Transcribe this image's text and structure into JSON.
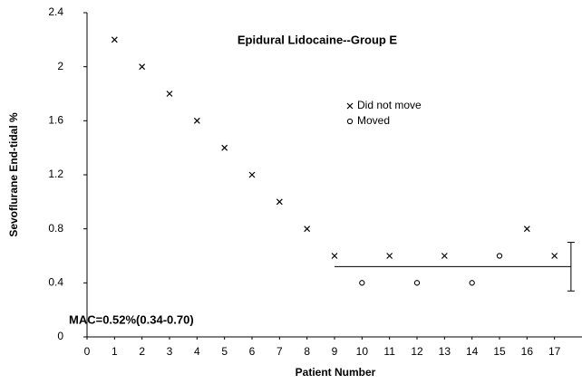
{
  "chart_data": {
    "type": "scatter",
    "title": "Epidural Lidocaine--Group E",
    "x_label": "Patient Number",
    "y_label": "Sevoflurane End-tidal %",
    "xlim": [
      0,
      18
    ],
    "ylim": [
      0,
      2.4
    ],
    "xticks": [
      0,
      1,
      2,
      3,
      4,
      5,
      6,
      7,
      8,
      9,
      10,
      11,
      12,
      13,
      14,
      15,
      16,
      17
    ],
    "yticks": [
      0,
      0.4,
      0.8,
      1.2,
      1.6,
      2,
      2.4
    ],
    "series": [
      {
        "name": "Did not move",
        "marker": "x",
        "color": "#000000",
        "x": [
          1,
          2,
          3,
          4,
          5,
          6,
          7,
          8,
          9,
          11,
          13,
          16,
          17
        ],
        "values": [
          2.2,
          2.0,
          1.8,
          1.6,
          1.4,
          1.2,
          1.0,
          0.8,
          0.6,
          0.6,
          0.6,
          0.8,
          0.6
        ]
      },
      {
        "name": "Moved",
        "marker": "o",
        "color": "#000000",
        "x": [
          10,
          12,
          14,
          15
        ],
        "values": [
          0.4,
          0.4,
          0.4,
          0.6
        ]
      }
    ],
    "mac": {
      "label": "MAC=0.52%(0.34-0.70)",
      "value": 0.52,
      "low": 0.34,
      "high": 0.7,
      "x": [
        9,
        17.6
      ]
    }
  }
}
